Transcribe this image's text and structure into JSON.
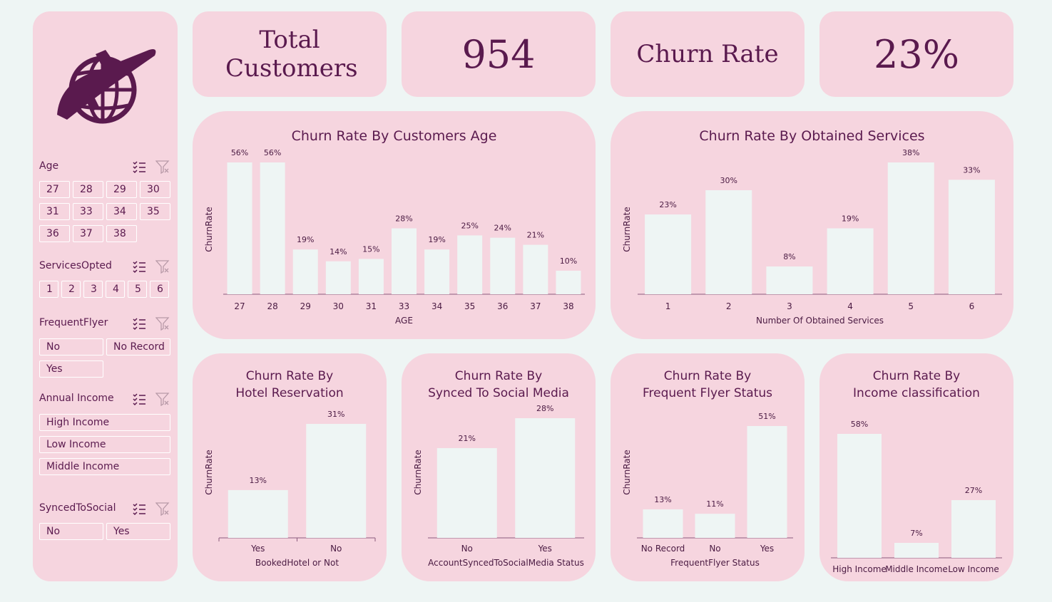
{
  "kpis": {
    "total_label": "Total Customers",
    "total_value": "954",
    "churn_label": "Churn Rate",
    "churn_value": "23%"
  },
  "colors": {
    "panel": "#f6d5df",
    "bar": "#eef5f4",
    "text": "#5a1a4e",
    "bg": "#eef5f4"
  },
  "slicers": {
    "age": {
      "title": "Age",
      "items": [
        "27",
        "28",
        "29",
        "30",
        "31",
        "33",
        "34",
        "35",
        "36",
        "37",
        "38"
      ]
    },
    "services": {
      "title": "ServicesOpted",
      "items": [
        "1",
        "2",
        "3",
        "4",
        "5",
        "6"
      ]
    },
    "frequent": {
      "title": "FrequentFlyer",
      "items": [
        "No",
        "No Record",
        "Yes"
      ]
    },
    "income": {
      "title": "Annual Income",
      "items": [
        "High Income",
        "Low Income",
        "Middle Income"
      ]
    },
    "social": {
      "title": "SyncedToSocial",
      "items": [
        "No",
        "Yes"
      ]
    }
  },
  "icons": [
    "plane-globe-logo-icon",
    "multi-select-icon",
    "clear-filter-icon"
  ],
  "chart_data": [
    {
      "type": "bar",
      "title": "Churn Rate By Customers Age",
      "categories": [
        "27",
        "28",
        "29",
        "30",
        "31",
        "33",
        "34",
        "35",
        "36",
        "37",
        "38"
      ],
      "values": [
        56,
        56,
        19,
        14,
        15,
        28,
        19,
        25,
        24,
        21,
        10
      ],
      "labels": [
        "56%",
        "56%",
        "19%",
        "14%",
        "15%",
        "28%",
        "19%",
        "25%",
        "24%",
        "21%",
        "10%"
      ],
      "xlabel": "AGE",
      "ylabel": "ChurnRate",
      "ylim": [
        0,
        56
      ]
    },
    {
      "type": "bar",
      "title": "Churn Rate By Obtained Services",
      "categories": [
        "1",
        "2",
        "3",
        "4",
        "5",
        "6"
      ],
      "values": [
        23,
        30,
        8,
        19,
        38,
        33
      ],
      "labels": [
        "23%",
        "30%",
        "8%",
        "19%",
        "38%",
        "33%"
      ],
      "xlabel": "Number Of Obtained Services",
      "ylabel": "ChurnRate",
      "ylim": [
        0,
        38
      ]
    },
    {
      "type": "bar",
      "title": "Churn Rate By",
      "title2": "Hotel Reservation",
      "categories": [
        "Yes",
        "No"
      ],
      "values": [
        13,
        31
      ],
      "labels": [
        "13%",
        "31%"
      ],
      "xlabel": "BookedHotel or Not",
      "ylabel": "ChurnRate",
      "ylim": [
        0,
        31
      ]
    },
    {
      "type": "bar",
      "title": "Churn Rate By",
      "title2": "Synced To Social Media",
      "categories": [
        "No",
        "Yes"
      ],
      "values": [
        21,
        28
      ],
      "labels": [
        "21%",
        "28%"
      ],
      "xlabel": "AccountSyncedToSocialMedia Status",
      "ylabel": "ChurnRate",
      "ylim": [
        0,
        28
      ]
    },
    {
      "type": "bar",
      "title": "Churn Rate By",
      "title2": "Frequent Flyer Status",
      "categories": [
        "No Record",
        "No",
        "Yes"
      ],
      "values": [
        13,
        11,
        51
      ],
      "labels": [
        "13%",
        "11%",
        "51%"
      ],
      "xlabel": "FrequentFlyer Status",
      "ylabel": "ChurnRate",
      "ylim": [
        0,
        51
      ]
    },
    {
      "type": "bar",
      "title": "Churn Rate By",
      "title2": "Income classification",
      "categories": [
        "High Income",
        "Middle Income",
        "Low Income"
      ],
      "values": [
        58,
        7,
        27
      ],
      "labels": [
        "58%",
        "7%",
        "27%"
      ],
      "xlabel": "",
      "ylabel": "",
      "ylim": [
        0,
        58
      ]
    }
  ]
}
